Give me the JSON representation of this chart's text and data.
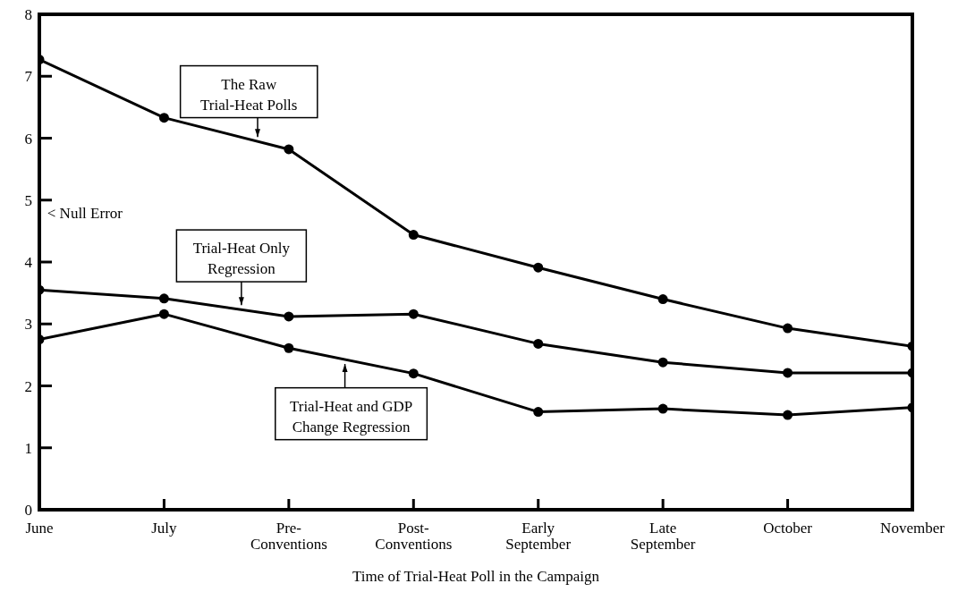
{
  "chart_data": {
    "type": "line",
    "xlabel": "Time of Trial-Heat Poll in the Campaign",
    "categories": [
      "June",
      "July",
      "Pre-Conventions",
      "Post-Conventions",
      "Early September",
      "Late September",
      "October",
      "November"
    ],
    "series": [
      {
        "name": "The Raw Trial-Heat Polls",
        "color": "#000000",
        "values": [
          7.27,
          6.33,
          5.82,
          4.44,
          3.91,
          3.4,
          2.93,
          2.64
        ]
      },
      {
        "name": "Trial-Heat Only Regression",
        "color": "#000000",
        "values": [
          3.55,
          3.41,
          3.12,
          3.16,
          2.68,
          2.38,
          2.21,
          2.21
        ]
      },
      {
        "name": "Trial-Heat and GDP Change Regression",
        "color": "#000000",
        "values": [
          2.75,
          3.16,
          2.61,
          2.2,
          1.58,
          1.63,
          1.53,
          1.65
        ]
      }
    ],
    "annotations": [
      "< Null Error"
    ],
    "ylim": [
      0,
      8
    ],
    "yticks": [
      0,
      1,
      2,
      3,
      4,
      5,
      6,
      7,
      8
    ],
    "grid": false,
    "marker": "circle",
    "line_style": "solid"
  }
}
